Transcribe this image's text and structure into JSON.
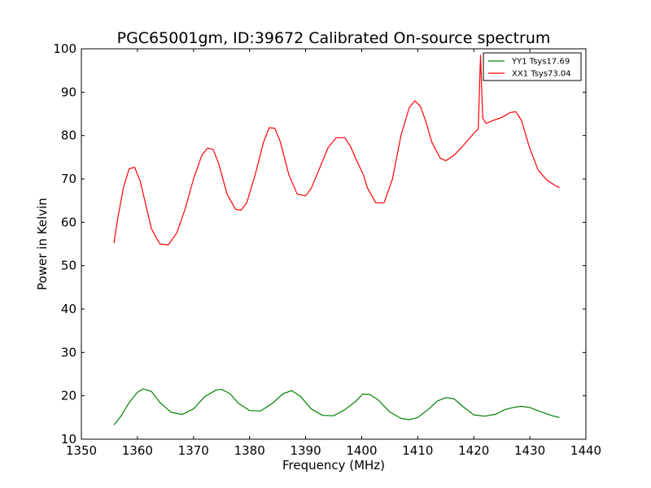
{
  "chart_data": {
    "type": "line",
    "title": "PGC65001gm, ID:39672 Calibrated On-source spectrum",
    "xlabel": "Frequency (MHz)",
    "ylabel": "Power in Kelvin",
    "xlim": [
      1350,
      1440
    ],
    "ylim": [
      10,
      100
    ],
    "xticks": [
      1350,
      1360,
      1370,
      1380,
      1390,
      1400,
      1410,
      1420,
      1430,
      1440
    ],
    "yticks": [
      10,
      20,
      30,
      40,
      50,
      60,
      70,
      80,
      90,
      100
    ],
    "grid": false,
    "legend_position": "top-right",
    "series": [
      {
        "name": "YY1 Tsys17.69",
        "color": "#008000",
        "x": [
          1355.8,
          1357,
          1358.5,
          1360,
          1361,
          1362.5,
          1364,
          1366,
          1368,
          1370,
          1372,
          1374,
          1375,
          1376.5,
          1378,
          1380,
          1382,
          1384,
          1386,
          1387.5,
          1389,
          1391,
          1393,
          1395,
          1397,
          1399,
          1400.2,
          1401.5,
          1403,
          1405,
          1407,
          1408.5,
          1410,
          1412,
          1413.5,
          1415,
          1416.5,
          1418,
          1420,
          1422,
          1424,
          1425.5,
          1427,
          1428.5,
          1430,
          1432,
          1434,
          1435.3
        ],
        "y": [
          13.3,
          15.2,
          18.4,
          20.8,
          21.6,
          21.0,
          18.5,
          16.2,
          15.7,
          17.0,
          19.8,
          21.3,
          21.5,
          20.5,
          18.3,
          16.6,
          16.5,
          18.2,
          20.5,
          21.2,
          20.0,
          17.0,
          15.5,
          15.4,
          16.8,
          18.8,
          20.4,
          20.3,
          19.0,
          16.3,
          14.8,
          14.5,
          15.0,
          17.0,
          18.8,
          19.6,
          19.3,
          17.6,
          15.6,
          15.3,
          15.8,
          16.8,
          17.3,
          17.6,
          17.3,
          16.3,
          15.4,
          15.0
        ]
      },
      {
        "name": "XX1 Tsys73.04",
        "color": "#ff0000",
        "x": [
          1355.8,
          1356.5,
          1357.5,
          1358.5,
          1359.5,
          1360.5,
          1361.5,
          1362.5,
          1364,
          1365.5,
          1367,
          1368.5,
          1370,
          1371.5,
          1372.5,
          1373.5,
          1374.5,
          1376,
          1377.5,
          1378.5,
          1379.5,
          1381,
          1382.5,
          1383.5,
          1384.5,
          1385.5,
          1387,
          1388.5,
          1390,
          1391,
          1392.5,
          1394,
          1395.5,
          1397,
          1398,
          1399,
          1400.3,
          1401,
          1402.5,
          1404,
          1405.5,
          1407,
          1408.5,
          1409.5,
          1410.5,
          1411.5,
          1412.5,
          1414,
          1415,
          1416.5,
          1418,
          1420,
          1420.8,
          1421.2,
          1421.6,
          1422.2,
          1423.5,
          1425,
          1426.5,
          1427.5,
          1428.5,
          1430,
          1431.5,
          1433,
          1434.5,
          1435.3
        ],
        "y": [
          55.2,
          61,
          68,
          72.3,
          72.7,
          69.5,
          64,
          58.5,
          55,
          54.8,
          57.5,
          63,
          70,
          75.5,
          77.1,
          76.8,
          73.5,
          66.5,
          63,
          62.8,
          64.5,
          71,
          78.5,
          81.8,
          81.7,
          78.5,
          71,
          66.5,
          66.1,
          67.8,
          72.5,
          77.2,
          79.5,
          79.5,
          77.5,
          74.5,
          71,
          68,
          64.5,
          64.5,
          70,
          80,
          86.5,
          88,
          86.7,
          83,
          78.5,
          74.8,
          74.2,
          75.5,
          77.5,
          80.5,
          81.5,
          98.5,
          84,
          82.8,
          83.5,
          84.2,
          85.3,
          85.5,
          83.5,
          77,
          72,
          69.8,
          68.5,
          68
        ]
      }
    ]
  }
}
